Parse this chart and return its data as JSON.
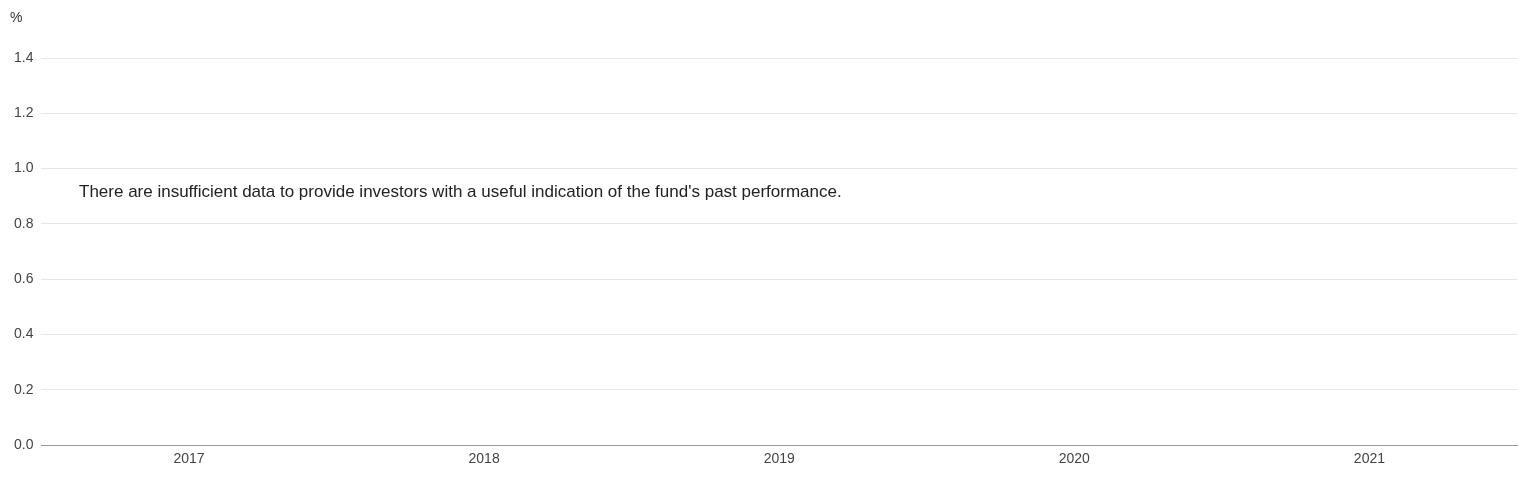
{
  "chart_data": {
    "type": "bar",
    "ylabel": "%",
    "categories": [
      "2017",
      "2018",
      "2019",
      "2020",
      "2021"
    ],
    "values": [
      null,
      null,
      null,
      null,
      null
    ],
    "ylim": [
      0,
      1.4
    ],
    "yticks": [
      {
        "value": 0,
        "label": "0.0"
      },
      {
        "value": 0.2,
        "label": "0.2"
      },
      {
        "value": 0.4,
        "label": "0.4"
      },
      {
        "value": 0.6,
        "label": "0.6"
      },
      {
        "value": 0.8,
        "label": "0.8"
      },
      {
        "value": 1,
        "label": "1.0"
      },
      {
        "value": 1.2,
        "label": "1.2"
      },
      {
        "value": 1.4,
        "label": "1.4"
      }
    ],
    "grid": "y",
    "legend": false,
    "annotations": [
      "There are insufficient data to provide investors with a useful indication of the fund's past performance."
    ]
  }
}
